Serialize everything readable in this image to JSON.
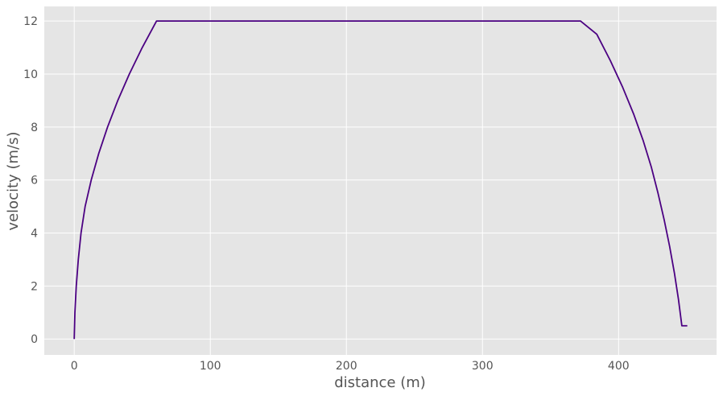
{
  "chart_data": {
    "type": "line",
    "title": "",
    "xlabel": "distance (m)",
    "ylabel": "velocity (m/s)",
    "xlim": [
      -22,
      472
    ],
    "ylim": [
      -0.6,
      12.55
    ],
    "xticks": [
      0,
      100,
      200,
      300,
      400
    ],
    "yticks": [
      0,
      2,
      4,
      6,
      8,
      10,
      12
    ],
    "xtick_labels": [
      "0",
      "100",
      "200",
      "300",
      "400"
    ],
    "ytick_labels": [
      "0",
      "2",
      "4",
      "6",
      "8",
      "10",
      "12"
    ],
    "grid": true,
    "style": "ggplot",
    "colors": {
      "plot_background": "#e5e5e5",
      "grid": "#ffffff",
      "line": "#4b0082",
      "text": "#555555"
    },
    "series": [
      {
        "x": [
          0,
          0.5,
          1.5,
          3,
          5,
          8,
          12.5,
          18,
          24.5,
          32,
          40.5,
          50,
          60.5,
          72,
          372,
          384,
          394,
          403,
          411,
          418,
          424,
          429,
          433.5,
          437.5,
          441,
          444,
          446.5,
          448.5,
          450,
          450.5
        ],
        "y": [
          0,
          1,
          2,
          3,
          4,
          5,
          6,
          7,
          8,
          9,
          10,
          11,
          12,
          12,
          12,
          11.5,
          10.5,
          9.5,
          8.5,
          7.5,
          6.5,
          5.5,
          4.5,
          3.5,
          2.5,
          1.5,
          0.5,
          0.5,
          0.5,
          0.5
        ]
      }
    ]
  }
}
